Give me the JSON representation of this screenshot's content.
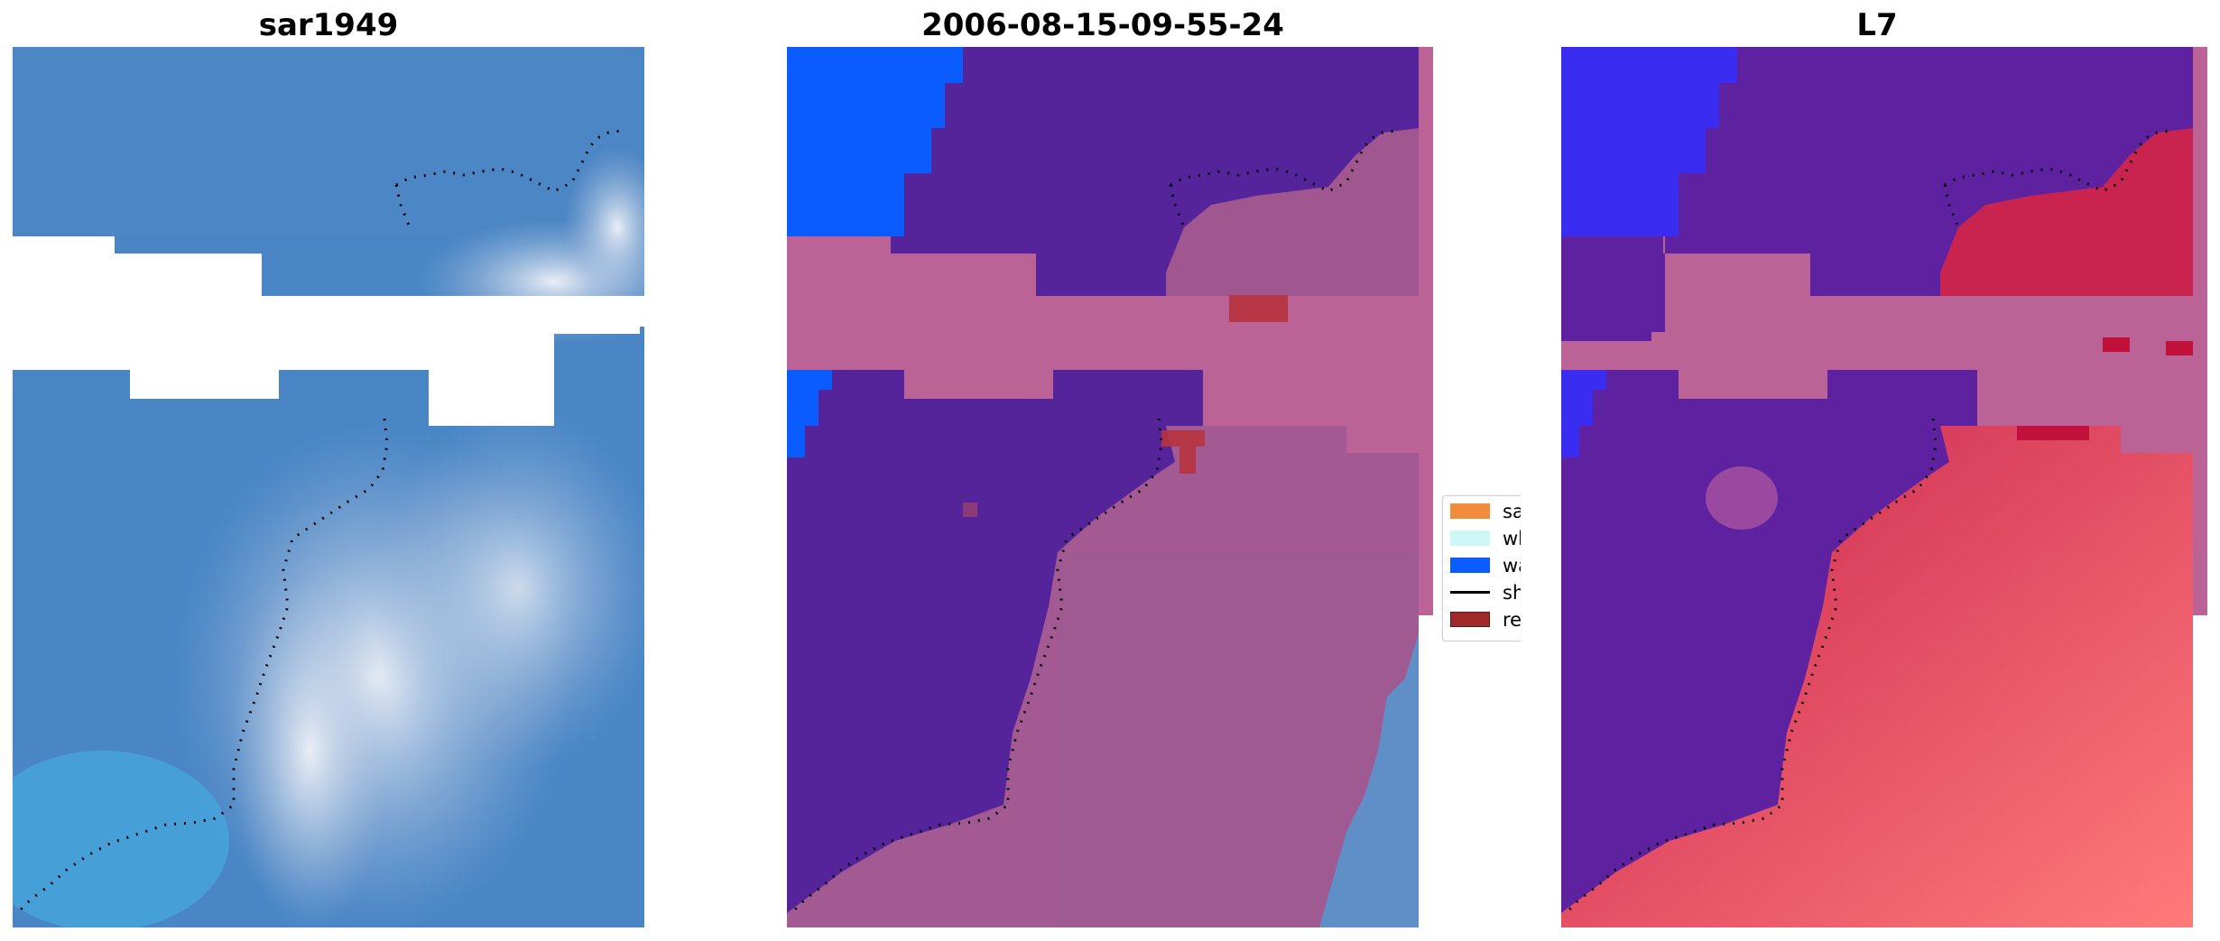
{
  "panels": [
    {
      "title": "sar1949"
    },
    {
      "title": "2006-08-15-09-55-24"
    },
    {
      "title": "L7"
    }
  ],
  "legend": {
    "items": [
      {
        "label": "sand",
        "color": "#f28c3a",
        "kind": "patch"
      },
      {
        "label": "whitewater",
        "color": "#cdf8f6",
        "kind": "patch"
      },
      {
        "label": "water",
        "color": "#0a5cff",
        "kind": "patch"
      },
      {
        "label": "shoreline",
        "color": "#000000",
        "kind": "line"
      },
      {
        "label": "reference shoreline",
        "color": "#9e2a2a",
        "kind": "patch"
      }
    ]
  },
  "colors": {
    "ocean_blue": "#3f7fc4",
    "land_purple": "#5b2a9a",
    "band_pink": "#bb6297",
    "water_class": "#0a5cff",
    "land_red": "#c8244f"
  }
}
